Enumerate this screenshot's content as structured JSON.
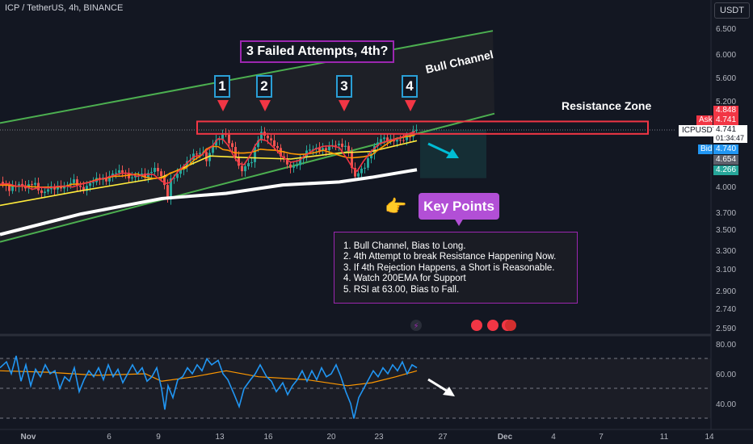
{
  "header": {
    "symbol_title": "ICP / TetherUS, 4h, BINANCE",
    "currency": "USDT"
  },
  "annotations": {
    "headline": "3 Failed Attempts, 4th?",
    "attempt_labels": [
      "1",
      "2",
      "3",
      "4"
    ],
    "bull_channel": "Bull Channel",
    "resistance_zone": "Resistance Zone",
    "key_points_title": "Key Points",
    "key_points": [
      "1. Bull Channel, Bias to Long.",
      "2. 4th Attempt to break Resistance Happening Now.",
      "3. If 4th Rejection Happens, a Short is Reasonable.",
      "4. Watch 200EMA for Support",
      "5. RSI at 63.00, Bias to Fall."
    ],
    "hand_emoji": "👉"
  },
  "price_tags": {
    "resistance": "4.848",
    "ask_label": "Ask",
    "ask": "4.741",
    "symbol": "ICPUSDT",
    "last": "4.741",
    "countdown": "01:34:47",
    "bid_label": "Bid",
    "bid": "4.740",
    "gray": "4.654",
    "green": "4.266"
  },
  "colors": {
    "background": "#131722",
    "candle_up": "#26a69a",
    "candle_down": "#ef5350",
    "ema_red": "#f23645",
    "ema_orange": "#ff9800",
    "ema_yellow": "#ffeb3b",
    "ema_white": "#ffffff",
    "channel": "#4caf50",
    "resistance": "#f23645",
    "rsi": "#2196f3",
    "rsi_ma": "#ff9800",
    "accent": "#9c27b0"
  },
  "chart_data": [
    {
      "type": "candlestick",
      "title": "ICP / TetherUS, 4h, BINANCE",
      "y_ticks": [
        6.5,
        6.0,
        5.6,
        5.2,
        4.741,
        4.0,
        3.7,
        3.5,
        3.3,
        3.1,
        2.9,
        2.74,
        2.59
      ],
      "y_tick_labels": [
        "6.500",
        "6.000",
        "5.600",
        "5.200",
        "4.741",
        "4.000",
        "3.700",
        "3.500",
        "3.300",
        "3.100",
        "2.900",
        "2.740",
        "2.590"
      ],
      "x_tick_labels": [
        "Nov",
        "6",
        "9",
        "13",
        "16",
        "20",
        "23",
        "27",
        "Dec",
        "4",
        "7",
        "11",
        "14"
      ],
      "bull_channel": {
        "upper": [
          [
            0,
            4.85
          ],
          [
            610,
            6.45
          ]
        ],
        "lower": [
          [
            0,
            3.38
          ],
          [
            612,
            5.0
          ]
        ]
      },
      "resistance_zone": [
        4.69,
        4.85
      ],
      "attempt_arrows_at": [
        "13",
        "16",
        "20",
        "25"
      ],
      "last_price": 4.741,
      "close_path": [
        [
          0,
          4.06
        ],
        [
          10,
          4.0
        ],
        [
          20,
          4.05
        ],
        [
          30,
          3.96
        ],
        [
          40,
          4.02
        ],
        [
          50,
          3.92
        ],
        [
          60,
          4.03
        ],
        [
          70,
          4.0
        ],
        [
          80,
          3.97
        ],
        [
          90,
          4.05
        ],
        [
          100,
          3.96
        ],
        [
          110,
          4.08
        ],
        [
          120,
          4.12
        ],
        [
          130,
          4.05
        ],
        [
          140,
          4.16
        ],
        [
          150,
          4.22
        ],
        [
          160,
          4.14
        ],
        [
          170,
          4.16
        ],
        [
          180,
          4.1
        ],
        [
          190,
          4.22
        ],
        [
          200,
          4.15
        ],
        [
          205,
          3.85
        ],
        [
          210,
          4.12
        ],
        [
          220,
          4.18
        ],
        [
          230,
          4.28
        ],
        [
          240,
          4.42
        ],
        [
          250,
          4.47
        ],
        [
          255,
          4.36
        ],
        [
          262,
          4.58
        ],
        [
          270,
          4.62
        ],
        [
          276,
          4.68
        ],
        [
          282,
          4.55
        ],
        [
          290,
          4.4
        ],
        [
          296,
          4.2
        ],
        [
          302,
          4.3
        ],
        [
          310,
          4.36
        ],
        [
          316,
          4.58
        ],
        [
          322,
          4.68
        ],
        [
          330,
          4.6
        ],
        [
          340,
          4.52
        ],
        [
          350,
          4.38
        ],
        [
          360,
          4.25
        ],
        [
          370,
          4.32
        ],
        [
          380,
          4.45
        ],
        [
          390,
          4.5
        ],
        [
          400,
          4.52
        ],
        [
          410,
          4.56
        ],
        [
          420,
          4.52
        ],
        [
          430,
          4.45
        ],
        [
          436,
          4.1
        ],
        [
          442,
          4.2
        ],
        [
          450,
          4.3
        ],
        [
          460,
          4.5
        ],
        [
          470,
          4.6
        ],
        [
          480,
          4.58
        ],
        [
          490,
          4.62
        ],
        [
          500,
          4.66
        ],
        [
          508,
          4.7
        ],
        [
          514,
          4.741
        ]
      ],
      "ema_yellow": [
        [
          0,
          3.78
        ],
        [
          100,
          3.95
        ],
        [
          200,
          4.12
        ],
        [
          260,
          4.4
        ],
        [
          300,
          4.38
        ],
        [
          360,
          4.36
        ],
        [
          420,
          4.44
        ],
        [
          460,
          4.46
        ],
        [
          516,
          4.6
        ]
      ],
      "ema_white": [
        [
          0,
          3.45
        ],
        [
          100,
          3.68
        ],
        [
          200,
          3.86
        ],
        [
          280,
          3.92
        ],
        [
          350,
          4.02
        ],
        [
          420,
          4.06
        ],
        [
          460,
          4.12
        ],
        [
          516,
          4.22
        ]
      ],
      "projection": {
        "to": 4.39,
        "shaded_range": [
          4.3,
          4.7
        ]
      }
    },
    {
      "type": "line",
      "title": "RSI",
      "y_ticks": [
        80,
        60,
        40
      ],
      "y_tick_labels": [
        "80.00",
        "60.00",
        "40.00"
      ],
      "bands": [
        70,
        30
      ],
      "series": [
        {
          "values": [
            [
              0,
              64
            ],
            [
              8,
              68
            ],
            [
              14,
              60
            ],
            [
              20,
              72
            ],
            [
              26,
              55
            ],
            [
              32,
              66
            ],
            [
              38,
              52
            ],
            [
              44,
              63
            ],
            [
              50,
              58
            ],
            [
              56,
              66
            ],
            [
              62,
              60
            ],
            [
              68,
              62
            ],
            [
              74,
              50
            ],
            [
              80,
              58
            ],
            [
              86,
              55
            ],
            [
              92,
              64
            ],
            [
              98,
              48
            ],
            [
              104,
              56
            ],
            [
              110,
              62
            ],
            [
              116,
              58
            ],
            [
              122,
              64
            ],
            [
              128,
              56
            ],
            [
              134,
              66
            ],
            [
              140,
              58
            ],
            [
              146,
              63
            ],
            [
              152,
              54
            ],
            [
              158,
              60
            ],
            [
              164,
              66
            ],
            [
              170,
              60
            ],
            [
              176,
              64
            ],
            [
              182,
              55
            ],
            [
              188,
              58
            ],
            [
              194,
              64
            ],
            [
              200,
              50
            ],
            [
              204,
              36
            ],
            [
              208,
              52
            ],
            [
              214,
              44
            ],
            [
              220,
              56
            ],
            [
              226,
              58
            ],
            [
              232,
              64
            ],
            [
              238,
              60
            ],
            [
              244,
              66
            ],
            [
              250,
              62
            ],
            [
              256,
              70
            ],
            [
              262,
              66
            ],
            [
              270,
              69
            ],
            [
              276,
              60
            ],
            [
              282,
              56
            ],
            [
              290,
              46
            ],
            [
              296,
              38
            ],
            [
              302,
              50
            ],
            [
              310,
              56
            ],
            [
              316,
              60
            ],
            [
              322,
              66
            ],
            [
              330,
              58
            ],
            [
              336,
              55
            ],
            [
              342,
              48
            ],
            [
              350,
              54
            ],
            [
              356,
              46
            ],
            [
              362,
              52
            ],
            [
              368,
              56
            ],
            [
              374,
              62
            ],
            [
              380,
              55
            ],
            [
              386,
              62
            ],
            [
              392,
              56
            ],
            [
              398,
              64
            ],
            [
              404,
              58
            ],
            [
              410,
              60
            ],
            [
              416,
              66
            ],
            [
              422,
              58
            ],
            [
              428,
              48
            ],
            [
              434,
              40
            ],
            [
              438,
              30
            ],
            [
              444,
              44
            ],
            [
              450,
              50
            ],
            [
              456,
              56
            ],
            [
              462,
              62
            ],
            [
              468,
              58
            ],
            [
              474,
              64
            ],
            [
              480,
              60
            ],
            [
              486,
              66
            ],
            [
              492,
              62
            ],
            [
              498,
              68
            ],
            [
              504,
              60
            ],
            [
              510,
              66
            ],
            [
              516,
              64
            ]
          ]
        },
        {
          "values": [
            [
              0,
              62
            ],
            [
              60,
              61
            ],
            [
              120,
              59
            ],
            [
              180,
              60
            ],
            [
              200,
              55
            ],
            [
              240,
              58
            ],
            [
              280,
              62
            ],
            [
              320,
              58
            ],
            [
              380,
              56
            ],
            [
              430,
              52
            ],
            [
              460,
              54
            ],
            [
              490,
              58
            ],
            [
              516,
              62
            ]
          ]
        }
      ]
    }
  ]
}
